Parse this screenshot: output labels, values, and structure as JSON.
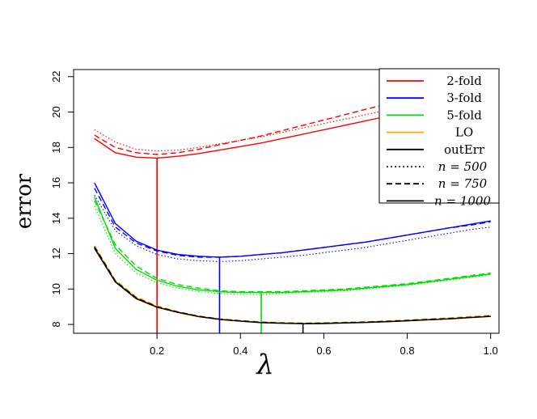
{
  "chart_data": {
    "type": "line",
    "xlabel": "λ",
    "ylabel": "error",
    "xlim": [
      0.0,
      1.02
    ],
    "ylim": [
      7.5,
      22.4
    ],
    "xticks": [
      0.2,
      0.4,
      0.6,
      0.8,
      1.0
    ],
    "xtick_labels": [
      "0.2",
      "0.4",
      "0.6",
      "0.8",
      "1.0"
    ],
    "yticks": [
      8,
      10,
      12,
      14,
      16,
      18,
      20,
      22
    ],
    "ytick_labels": [
      "8",
      "10",
      "12",
      "14",
      "16",
      "18",
      "20",
      "22"
    ],
    "grid": false,
    "legend_position": "top-right",
    "x": [
      0.05,
      0.1,
      0.15,
      0.2,
      0.25,
      0.3,
      0.35,
      0.4,
      0.45,
      0.5,
      0.55,
      0.6,
      0.65,
      0.7,
      0.75,
      0.8,
      0.85,
      0.9,
      0.95,
      1.0
    ],
    "legend": {
      "methods": [
        {
          "label": "2-fold",
          "color": "#ff0000"
        },
        {
          "label": "3-fold",
          "color": "#0000ff"
        },
        {
          "label": "5-fold",
          "color": "#00dd00"
        },
        {
          "label": "LO",
          "color": "#ffa500"
        },
        {
          "label": "outErr",
          "color": "#000000"
        }
      ],
      "sample_sizes": [
        {
          "label": "n = 500",
          "style": "dotted"
        },
        {
          "label": "n = 750",
          "style": "dashed"
        },
        {
          "label": "n = 1000",
          "style": "solid"
        }
      ]
    },
    "series": [
      {
        "method": "2-fold",
        "n": 1000,
        "color": "#ff0000",
        "style": "solid",
        "values": [
          18.5,
          17.7,
          17.45,
          17.4,
          17.5,
          17.65,
          17.85,
          18.05,
          18.25,
          18.5,
          18.75,
          19.0,
          19.25,
          19.5,
          19.75,
          20.0,
          20.3,
          20.6,
          20.95,
          21.3
        ]
      },
      {
        "method": "2-fold",
        "n": 750,
        "color": "#ff0000",
        "style": "dashed",
        "values": [
          18.7,
          18.0,
          17.7,
          17.6,
          17.7,
          17.9,
          18.15,
          18.4,
          18.65,
          18.95,
          19.25,
          19.55,
          19.85,
          20.15,
          20.45,
          20.75,
          21.05,
          21.35,
          21.7,
          22.0
        ]
      },
      {
        "method": "2-fold",
        "n": 500,
        "color": "#ff0000",
        "style": "dotted",
        "values": [
          19.0,
          18.3,
          17.9,
          17.8,
          17.85,
          18.0,
          18.2,
          18.4,
          18.6,
          18.85,
          19.1,
          19.35,
          19.6,
          19.85,
          20.1,
          20.35,
          20.6,
          20.85,
          21.1,
          21.4
        ]
      },
      {
        "method": "3-fold",
        "n": 1000,
        "color": "#0000ff",
        "style": "solid",
        "values": [
          16.0,
          13.7,
          12.7,
          12.2,
          11.95,
          11.85,
          11.8,
          11.85,
          11.95,
          12.05,
          12.2,
          12.35,
          12.5,
          12.65,
          12.85,
          13.05,
          13.25,
          13.45,
          13.65,
          13.85
        ]
      },
      {
        "method": "3-fold",
        "n": 750,
        "color": "#0000ff",
        "style": "dashed",
        "values": [
          15.7,
          13.5,
          12.6,
          12.15,
          11.9,
          11.8,
          11.8,
          11.85,
          11.95,
          12.05,
          12.2,
          12.35,
          12.5,
          12.65,
          12.85,
          13.05,
          13.25,
          13.45,
          13.6,
          13.8
        ]
      },
      {
        "method": "3-fold",
        "n": 500,
        "color": "#0000ff",
        "style": "dotted",
        "values": [
          15.3,
          13.3,
          12.45,
          11.95,
          11.7,
          11.6,
          11.55,
          11.6,
          11.7,
          11.8,
          11.9,
          12.05,
          12.2,
          12.35,
          12.55,
          12.75,
          12.95,
          13.15,
          13.35,
          13.5
        ]
      },
      {
        "method": "5-fold",
        "n": 1000,
        "color": "#00dd00",
        "style": "solid",
        "values": [
          15.2,
          12.3,
          11.1,
          10.5,
          10.15,
          9.95,
          9.85,
          9.8,
          9.8,
          9.8,
          9.85,
          9.9,
          9.95,
          10.05,
          10.15,
          10.25,
          10.4,
          10.55,
          10.7,
          10.85
        ]
      },
      {
        "method": "5-fold",
        "n": 750,
        "color": "#00dd00",
        "style": "dashed",
        "values": [
          15.0,
          12.5,
          11.3,
          10.6,
          10.25,
          10.05,
          9.9,
          9.85,
          9.85,
          9.85,
          9.9,
          9.95,
          10.0,
          10.1,
          10.2,
          10.3,
          10.45,
          10.6,
          10.75,
          10.9
        ]
      },
      {
        "method": "5-fold",
        "n": 500,
        "color": "#00dd00",
        "style": "dotted",
        "values": [
          14.7,
          12.0,
          10.9,
          10.35,
          10.05,
          9.85,
          9.75,
          9.7,
          9.7,
          9.75,
          9.8,
          9.85,
          9.9,
          10.0,
          10.1,
          10.2,
          10.35,
          10.5,
          10.65,
          10.8
        ]
      },
      {
        "method": "LO",
        "n": 1000,
        "color": "#ffa500",
        "style": "solid",
        "values": [
          12.4,
          10.45,
          9.5,
          9.0,
          8.7,
          8.45,
          8.3,
          8.2,
          8.12,
          8.08,
          8.06,
          8.07,
          8.1,
          8.13,
          8.17,
          8.22,
          8.28,
          8.33,
          8.4,
          8.47
        ]
      },
      {
        "method": "LO",
        "n": 750,
        "color": "#ffa500",
        "style": "dashed",
        "values": [
          12.45,
          10.5,
          9.55,
          9.05,
          8.72,
          8.48,
          8.32,
          8.22,
          8.14,
          8.1,
          8.08,
          8.09,
          8.12,
          8.15,
          8.2,
          8.25,
          8.31,
          8.37,
          8.44,
          8.52
        ]
      },
      {
        "method": "LO",
        "n": 500,
        "color": "#ffa500",
        "style": "dotted",
        "values": [
          12.35,
          10.4,
          9.45,
          8.95,
          8.65,
          8.42,
          8.27,
          8.17,
          8.1,
          8.06,
          8.04,
          8.05,
          8.08,
          8.11,
          8.15,
          8.2,
          8.26,
          8.31,
          8.38,
          8.45
        ]
      },
      {
        "method": "outErr",
        "n": 1000,
        "color": "#000000",
        "style": "solid",
        "values": [
          12.3,
          10.4,
          9.45,
          8.97,
          8.68,
          8.44,
          8.28,
          8.18,
          8.1,
          8.06,
          8.04,
          8.05,
          8.08,
          8.11,
          8.15,
          8.2,
          8.26,
          8.31,
          8.38,
          8.45
        ]
      },
      {
        "method": "outErr",
        "n": 750,
        "color": "#000000",
        "style": "dashed",
        "values": [
          12.4,
          10.45,
          9.5,
          9.0,
          8.7,
          8.46,
          8.3,
          8.2,
          8.12,
          8.08,
          8.06,
          8.07,
          8.1,
          8.13,
          8.17,
          8.22,
          8.28,
          8.33,
          8.4,
          8.47
        ]
      },
      {
        "method": "outErr",
        "n": 500,
        "color": "#000000",
        "style": "dotted",
        "values": [
          12.35,
          10.42,
          9.47,
          8.98,
          8.69,
          8.45,
          8.29,
          8.19,
          8.11,
          8.07,
          8.05,
          8.06,
          8.09,
          8.12,
          8.16,
          8.21,
          8.27,
          8.32,
          8.39,
          8.46
        ]
      }
    ],
    "minimum_markers": [
      {
        "method": "2-fold",
        "color": "#ff0000",
        "x": 0.2,
        "y": 17.4
      },
      {
        "method": "3-fold",
        "color": "#0000ff",
        "x": 0.35,
        "y": 11.8
      },
      {
        "method": "5-fold",
        "color": "#00dd00",
        "x": 0.45,
        "y": 9.8
      },
      {
        "method": "LO",
        "color": "#000000",
        "x": 0.55,
        "y": 8.06
      }
    ]
  }
}
